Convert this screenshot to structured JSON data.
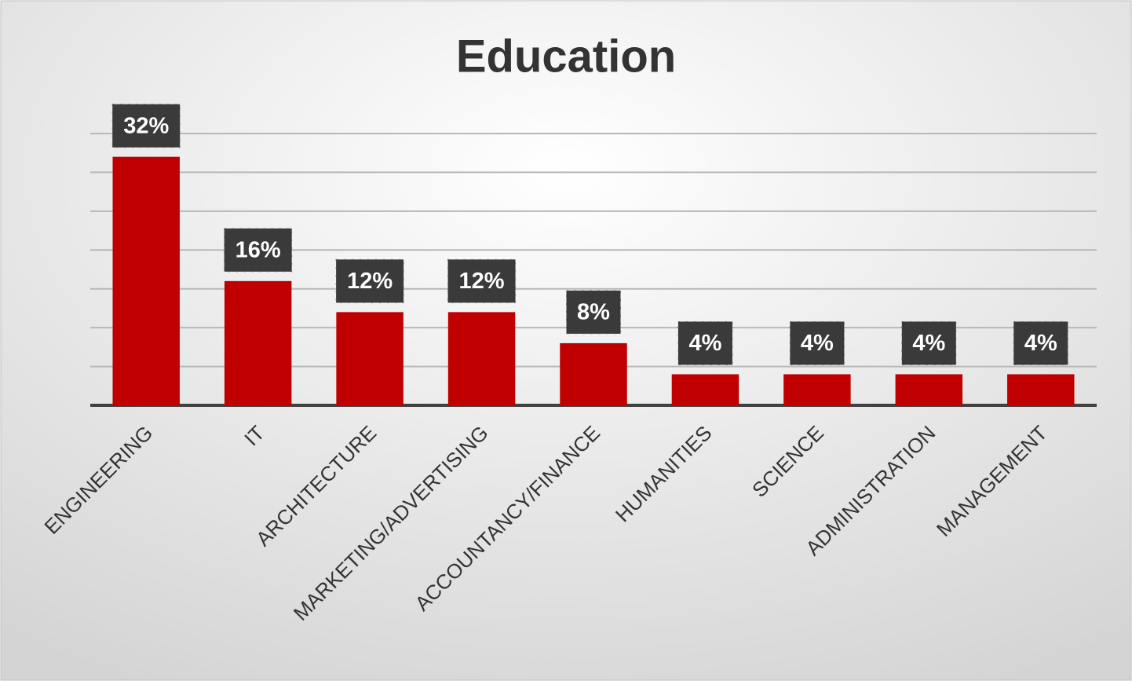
{
  "chart_data": {
    "type": "bar",
    "title": "Education",
    "categories": [
      "ENGINEERING",
      "IT",
      "ARCHITECTURE",
      "MARKETING/ADVERTISING",
      "ACCOUNTANCY/FINANCE",
      "HUMANITIES",
      "SCIENCE",
      "ADMINISTRATION",
      "MANAGEMENT"
    ],
    "values": [
      32,
      16,
      12,
      12,
      8,
      4,
      4,
      4,
      4
    ],
    "value_labels": [
      "32%",
      "16%",
      "12%",
      "12%",
      "8%",
      "4%",
      "4%",
      "4%",
      "4%"
    ],
    "color": "#c00000",
    "ylim": [
      0,
      35
    ],
    "yticks": [
      0,
      5,
      10,
      15,
      20,
      25,
      30,
      35
    ],
    "grid": true
  }
}
